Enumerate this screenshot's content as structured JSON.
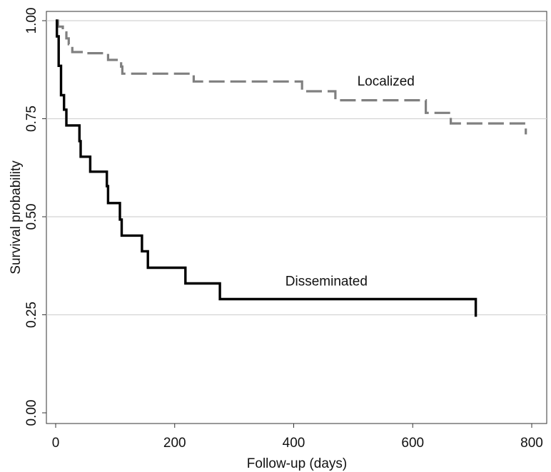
{
  "chart_data": {
    "type": "line",
    "step": true,
    "title": "",
    "xlabel": "Follow-up (days)",
    "ylabel": "Survival probability",
    "xlim": [
      0,
      800
    ],
    "ylim": [
      0,
      1
    ],
    "xticks": [
      0,
      200,
      400,
      600,
      800
    ],
    "xtick_labels": [
      "0",
      "200",
      "400",
      "600",
      "800"
    ],
    "yticks": [
      0,
      0.25,
      0.5,
      0.75,
      1
    ],
    "ytick_labels": [
      "0.00",
      "0.25",
      "0.50",
      "0.75",
      "1.00"
    ],
    "grid": "horizontal",
    "series": [
      {
        "name": "Localized",
        "color": "#808080",
        "style": "dashed",
        "label_at": [
          555,
          0.835
        ],
        "points": [
          [
            0,
            1.0
          ],
          [
            4,
            0.985
          ],
          [
            12,
            0.97
          ],
          [
            18,
            0.955
          ],
          [
            22,
            0.94
          ],
          [
            28,
            0.92
          ],
          [
            52,
            0.917
          ],
          [
            88,
            0.9
          ],
          [
            110,
            0.883
          ],
          [
            112,
            0.865
          ],
          [
            232,
            0.845
          ],
          [
            412,
            0.845
          ],
          [
            414,
            0.82
          ],
          [
            468,
            0.82
          ],
          [
            470,
            0.797
          ],
          [
            620,
            0.797
          ],
          [
            622,
            0.765
          ],
          [
            662,
            0.765
          ],
          [
            664,
            0.738
          ],
          [
            790,
            0.738
          ],
          [
            790,
            0.71
          ]
        ]
      },
      {
        "name": "Disseminated",
        "color": "#000000",
        "style": "solid",
        "label_at": [
          455,
          0.325
        ],
        "points": [
          [
            0,
            1.0
          ],
          [
            2,
            0.96
          ],
          [
            5,
            0.885
          ],
          [
            9,
            0.81
          ],
          [
            14,
            0.773
          ],
          [
            18,
            0.733
          ],
          [
            40,
            0.693
          ],
          [
            42,
            0.653
          ],
          [
            58,
            0.615
          ],
          [
            86,
            0.578
          ],
          [
            88,
            0.535
          ],
          [
            108,
            0.493
          ],
          [
            111,
            0.452
          ],
          [
            145,
            0.412
          ],
          [
            155,
            0.37
          ],
          [
            218,
            0.33
          ],
          [
            276,
            0.29
          ],
          [
            706,
            0.29
          ],
          [
            706,
            0.245
          ]
        ]
      }
    ]
  }
}
